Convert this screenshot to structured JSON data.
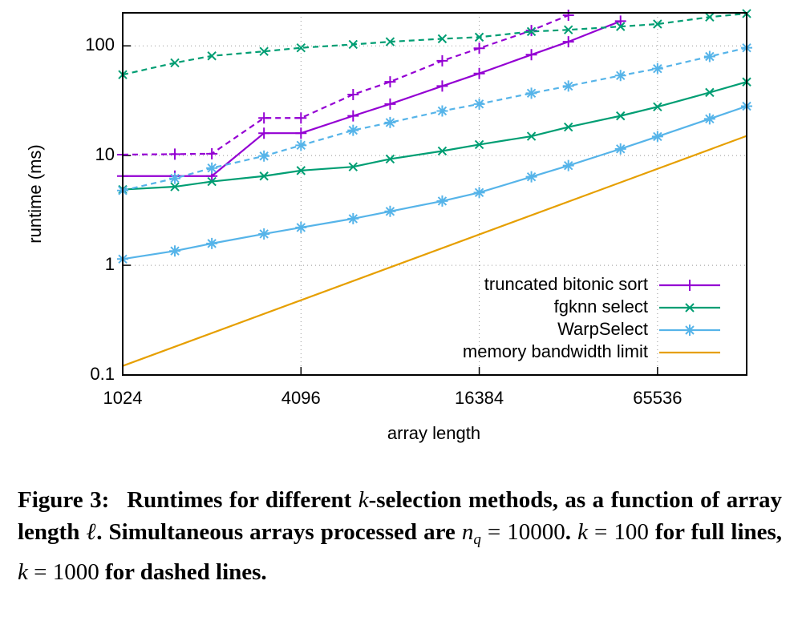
{
  "chart_data": {
    "type": "line",
    "xlabel": "array length",
    "ylabel": "runtime (ms)",
    "x": [
      1024,
      1536,
      2048,
      3072,
      4096,
      6144,
      8192,
      12288,
      16384,
      24576,
      32768,
      49152,
      65536,
      98304,
      131072
    ],
    "xlog": true,
    "ylog": true,
    "xlim": [
      1024,
      131072
    ],
    "ylim": [
      0.1,
      200
    ],
    "xticks": [
      1024,
      4096,
      16384,
      65536
    ],
    "yticks": [
      0.1,
      1,
      10,
      100
    ],
    "grid": true,
    "legend": "lower right",
    "series": [
      {
        "name": "truncated bitonic sort",
        "color": "#9400d3",
        "marker": "+",
        "values": [
          6.5,
          6.5,
          6.5,
          16,
          16,
          23,
          29.5,
          43,
          56,
          83,
          109,
          168,
          null,
          null,
          null
        ],
        "dashed_values": [
          10.2,
          10.3,
          10.4,
          22,
          22,
          36,
          47,
          73,
          95,
          138,
          190,
          null,
          null,
          null,
          null
        ]
      },
      {
        "name": "fgknn select",
        "color": "#009e73",
        "marker": "x",
        "values": [
          4.9,
          5.2,
          5.8,
          6.5,
          7.3,
          7.9,
          9.3,
          11,
          12.6,
          15,
          18.2,
          23,
          27.8,
          37.6,
          46.9
        ],
        "dashed_values": [
          54.6,
          70,
          81,
          89,
          96,
          103,
          109,
          116,
          120,
          135,
          140,
          150,
          158,
          183,
          197
        ]
      },
      {
        "name": "WarpSelect",
        "color": "#56b4e9",
        "marker": "*",
        "values": [
          1.14,
          1.35,
          1.58,
          1.93,
          2.21,
          2.66,
          3.1,
          3.85,
          4.6,
          6.4,
          8.1,
          11.5,
          14.9,
          21.6,
          28.2
        ],
        "dashed_values": [
          4.8,
          6.2,
          7.7,
          9.9,
          12.4,
          17,
          20,
          25.5,
          29.5,
          37,
          43,
          53.6,
          62,
          80,
          96
        ]
      },
      {
        "name": "memory bandwidth limit",
        "color": "#e69f00",
        "marker": "none",
        "x": [
          1024,
          131072
        ],
        "values": [
          0.121,
          15.1
        ]
      }
    ]
  },
  "caption": [
    {
      "text": "Figure 3:",
      "style": "label"
    },
    {
      "text": "Runtimes for different ",
      "style": "bold"
    },
    {
      "text": "k",
      "style": "var"
    },
    {
      "text": "-selection methods, as a function of array length ",
      "style": "bold"
    },
    {
      "text": "ℓ",
      "style": "var"
    },
    {
      "text": ". Simultaneous arrays processed are ",
      "style": "bold"
    },
    {
      "text": "n",
      "style": "var"
    },
    {
      "text": "q",
      "style": "sub"
    },
    {
      "text": " = 10000",
      "style": "num"
    },
    {
      "text": ". ",
      "style": "bold"
    },
    {
      "text": "k",
      "style": "var"
    },
    {
      "text": " = 100",
      "style": "num"
    },
    {
      "text": " for full lines, ",
      "style": "bold"
    },
    {
      "text": "k",
      "style": "var"
    },
    {
      "text": " = 1000",
      "style": "num"
    },
    {
      "text": " for dashed lines.",
      "style": "bold"
    }
  ]
}
